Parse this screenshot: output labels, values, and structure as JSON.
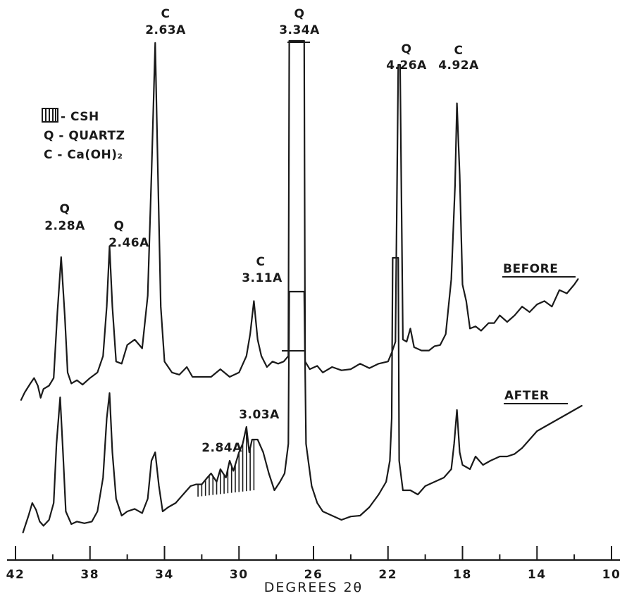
{
  "chart_data": {
    "type": "line",
    "xlabel": "DEGREES 2θ",
    "x_ticks": [
      "42",
      "38",
      "34",
      "30",
      "26",
      "22",
      "18",
      "14",
      "10"
    ],
    "x_range": [
      42,
      10
    ],
    "x_reversed": true,
    "legend": {
      "placement": "top-left",
      "entries": [
        {
          "symbol": "hatched",
          "label": "- CSH"
        },
        {
          "symbol": "Q",
          "label": "Q - QUARTZ"
        },
        {
          "symbol": "C",
          "label": "C - Ca(OH)₂"
        }
      ]
    },
    "series": [
      {
        "name": "BEFORE",
        "baseline": 0,
        "points": [
          [
            41.7,
            -0.5
          ],
          [
            41.5,
            0.2
          ],
          [
            41.2,
            1.0
          ],
          [
            41.0,
            1.5
          ],
          [
            40.8,
            0.8
          ],
          [
            40.65,
            -0.3
          ],
          [
            40.5,
            0.5
          ],
          [
            40.2,
            0.8
          ],
          [
            39.95,
            1.5
          ],
          [
            39.75,
            7.5
          ],
          [
            39.55,
            12.5
          ],
          [
            39.35,
            7.0
          ],
          [
            39.2,
            2.0
          ],
          [
            39.0,
            1.0
          ],
          [
            38.7,
            1.3
          ],
          [
            38.4,
            0.9
          ],
          [
            38.0,
            1.5
          ],
          [
            37.6,
            2.0
          ],
          [
            37.3,
            3.5
          ],
          [
            37.1,
            8.0
          ],
          [
            36.95,
            13.5
          ],
          [
            36.8,
            8.0
          ],
          [
            36.6,
            3.0
          ],
          [
            36.3,
            2.8
          ],
          [
            36.0,
            4.5
          ],
          [
            35.6,
            5.0
          ],
          [
            35.2,
            4.2
          ],
          [
            34.9,
            9.0
          ],
          [
            34.7,
            20.0
          ],
          [
            34.5,
            32.0
          ],
          [
            34.35,
            20.0
          ],
          [
            34.2,
            8.0
          ],
          [
            34.0,
            3.0
          ],
          [
            33.6,
            2.0
          ],
          [
            33.2,
            1.8
          ],
          [
            32.8,
            2.5
          ],
          [
            32.5,
            1.6
          ],
          [
            32.0,
            1.6
          ],
          [
            31.5,
            1.6
          ],
          [
            31.0,
            2.3
          ],
          [
            30.5,
            1.6
          ],
          [
            30.0,
            2.0
          ],
          [
            29.6,
            3.5
          ],
          [
            29.4,
            5.5
          ],
          [
            29.2,
            8.5
          ],
          [
            29.0,
            5.0
          ],
          [
            28.8,
            3.5
          ],
          [
            28.5,
            2.5
          ],
          [
            28.2,
            3.0
          ],
          [
            27.9,
            2.8
          ],
          [
            27.6,
            3.0
          ],
          [
            27.35,
            3.5
          ],
          [
            27.3,
            40
          ],
          [
            26.5,
            40
          ],
          [
            26.45,
            3.0
          ],
          [
            26.2,
            2.3
          ],
          [
            25.8,
            2.6
          ],
          [
            25.5,
            2.0
          ],
          [
            25.0,
            2.5
          ],
          [
            24.5,
            2.2
          ],
          [
            24.0,
            2.3
          ],
          [
            23.5,
            2.8
          ],
          [
            23.0,
            2.4
          ],
          [
            22.5,
            2.8
          ],
          [
            22.0,
            3.0
          ],
          [
            21.8,
            3.8
          ],
          [
            21.6,
            4.8
          ],
          [
            21.45,
            30.0
          ],
          [
            21.35,
            30.0
          ],
          [
            21.2,
            5.0
          ],
          [
            21.0,
            4.8
          ],
          [
            20.8,
            6.0
          ],
          [
            20.6,
            4.3
          ],
          [
            20.2,
            4.0
          ],
          [
            19.8,
            4.0
          ],
          [
            19.5,
            4.4
          ],
          [
            19.2,
            4.5
          ],
          [
            18.9,
            5.5
          ],
          [
            18.6,
            10.5
          ],
          [
            18.4,
            19.0
          ],
          [
            18.3,
            26.5
          ],
          [
            18.15,
            20.0
          ],
          [
            18.0,
            10.0
          ],
          [
            17.8,
            8.5
          ],
          [
            17.6,
            6.0
          ],
          [
            17.3,
            6.2
          ],
          [
            17.0,
            5.8
          ],
          [
            16.6,
            6.5
          ],
          [
            16.3,
            6.5
          ],
          [
            16.0,
            7.2
          ],
          [
            15.6,
            6.6
          ],
          [
            15.2,
            7.2
          ],
          [
            14.8,
            8.0
          ],
          [
            14.4,
            7.5
          ],
          [
            14.0,
            8.2
          ],
          [
            13.6,
            8.5
          ],
          [
            13.2,
            8.0
          ],
          [
            12.8,
            9.5
          ],
          [
            12.4,
            9.2
          ],
          [
            12.0,
            10.0
          ],
          [
            11.8,
            10.5
          ]
        ]
      },
      {
        "name": "AFTER",
        "baseline": 0,
        "points": [
          [
            41.6,
            -0.5
          ],
          [
            41.3,
            1.5
          ],
          [
            41.1,
            3.0
          ],
          [
            40.9,
            2.2
          ],
          [
            40.7,
            0.8
          ],
          [
            40.5,
            0.3
          ],
          [
            40.2,
            1.0
          ],
          [
            39.95,
            3.0
          ],
          [
            39.8,
            10.0
          ],
          [
            39.6,
            15.5
          ],
          [
            39.45,
            9.0
          ],
          [
            39.3,
            2.0
          ],
          [
            39.0,
            0.5
          ],
          [
            38.7,
            0.8
          ],
          [
            38.3,
            0.6
          ],
          [
            37.9,
            0.8
          ],
          [
            37.6,
            2.0
          ],
          [
            37.3,
            6.0
          ],
          [
            37.1,
            13.0
          ],
          [
            36.95,
            16.0
          ],
          [
            36.8,
            9.0
          ],
          [
            36.6,
            3.5
          ],
          [
            36.3,
            1.5
          ],
          [
            36.0,
            2.0
          ],
          [
            35.6,
            2.3
          ],
          [
            35.2,
            1.8
          ],
          [
            34.9,
            3.5
          ],
          [
            34.7,
            8.0
          ],
          [
            34.5,
            9.0
          ],
          [
            34.3,
            5.0
          ],
          [
            34.1,
            2.0
          ],
          [
            33.8,
            2.5
          ],
          [
            33.4,
            3.0
          ],
          [
            33.0,
            4.0
          ],
          [
            32.6,
            5.0
          ],
          [
            32.3,
            5.2
          ],
          [
            32.0,
            5.2
          ],
          [
            31.7,
            6.0
          ],
          [
            31.5,
            6.5
          ],
          [
            31.2,
            5.5
          ],
          [
            31.0,
            7.0
          ],
          [
            30.7,
            6.0
          ],
          [
            30.5,
            8.0
          ],
          [
            30.3,
            6.8
          ],
          [
            30.0,
            9.0
          ],
          [
            29.8,
            10.0
          ],
          [
            29.6,
            12.0
          ],
          [
            29.45,
            9.0
          ],
          [
            29.3,
            10.5
          ],
          [
            29.0,
            10.5
          ],
          [
            28.7,
            9.0
          ],
          [
            28.4,
            6.5
          ],
          [
            28.1,
            4.5
          ],
          [
            27.8,
            5.5
          ],
          [
            27.55,
            6.5
          ],
          [
            27.35,
            10.0
          ],
          [
            27.3,
            28.0
          ],
          [
            26.5,
            28.0
          ],
          [
            26.4,
            10.0
          ],
          [
            26.1,
            5.0
          ],
          [
            25.8,
            3.0
          ],
          [
            25.5,
            2.0
          ],
          [
            25.0,
            1.5
          ],
          [
            24.5,
            1.0
          ],
          [
            24.0,
            1.4
          ],
          [
            23.5,
            1.5
          ],
          [
            23.0,
            2.5
          ],
          [
            22.5,
            4.0
          ],
          [
            22.1,
            5.5
          ],
          [
            21.9,
            8.0
          ],
          [
            21.8,
            13.0
          ],
          [
            21.75,
            32.0
          ],
          [
            21.45,
            32.0
          ],
          [
            21.4,
            8.0
          ],
          [
            21.2,
            4.5
          ],
          [
            20.8,
            4.5
          ],
          [
            20.4,
            4.0
          ],
          [
            20.0,
            5.0
          ],
          [
            19.5,
            5.5
          ],
          [
            19.0,
            6.0
          ],
          [
            18.6,
            7.0
          ],
          [
            18.45,
            10.0
          ],
          [
            18.3,
            14.0
          ],
          [
            18.15,
            9.0
          ],
          [
            18.0,
            7.5
          ],
          [
            17.6,
            7.0
          ],
          [
            17.3,
            8.5
          ],
          [
            16.9,
            7.5
          ],
          [
            16.5,
            8.0
          ],
          [
            16.0,
            8.5
          ],
          [
            15.6,
            8.5
          ],
          [
            15.2,
            8.8
          ],
          [
            14.8,
            9.5
          ],
          [
            14.4,
            10.5
          ],
          [
            14.0,
            11.5
          ],
          [
            13.6,
            12.0
          ],
          [
            13.2,
            12.5
          ],
          [
            12.8,
            13.0
          ],
          [
            12.4,
            13.5
          ],
          [
            12.0,
            14.0
          ],
          [
            11.6,
            14.5
          ]
        ]
      }
    ],
    "csh_hatch_range": [
      32.2,
      29.2
    ],
    "annotations": [
      {
        "text": "C",
        "d": "2.63A",
        "series": "BEFORE",
        "x": 34.5
      },
      {
        "text": "Q",
        "d": "3.34A",
        "series": "BEFORE",
        "x": 26.9
      },
      {
        "text": "Q",
        "d": "4.26A",
        "series": "BEFORE",
        "x": 21.4
      },
      {
        "text": "C",
        "d": "4.92A",
        "series": "BEFORE",
        "x": 18.3
      },
      {
        "text": "Q",
        "d": "2.28A",
        "series": "BEFORE",
        "x": 39.55
      },
      {
        "text": "Q",
        "d": "2.46A",
        "series": "BEFORE",
        "x": 36.95
      },
      {
        "text": "C",
        "d": "3.11A",
        "series": "BEFORE",
        "x": 29.2
      },
      {
        "text": "",
        "d": "3.03A",
        "series": "AFTER",
        "x": 29.6
      },
      {
        "text": "",
        "d": "2.84A",
        "series": "AFTER",
        "x": 31.7
      }
    ]
  }
}
